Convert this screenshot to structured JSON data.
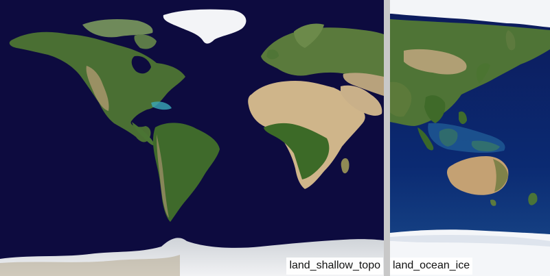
{
  "panels": {
    "left": {
      "caption": "land_shallow_topo",
      "ocean_color": "#0d0b3f",
      "ice_color": "#eef0f4"
    },
    "right": {
      "caption": "land_ocean_ice",
      "ocean_color": "#0a1a5c",
      "ice_color": "#f4f6f9"
    }
  },
  "colors": {
    "land_green": "#3d6a2a",
    "desert": "#cdb48a",
    "divider": "#c8c8c8"
  }
}
